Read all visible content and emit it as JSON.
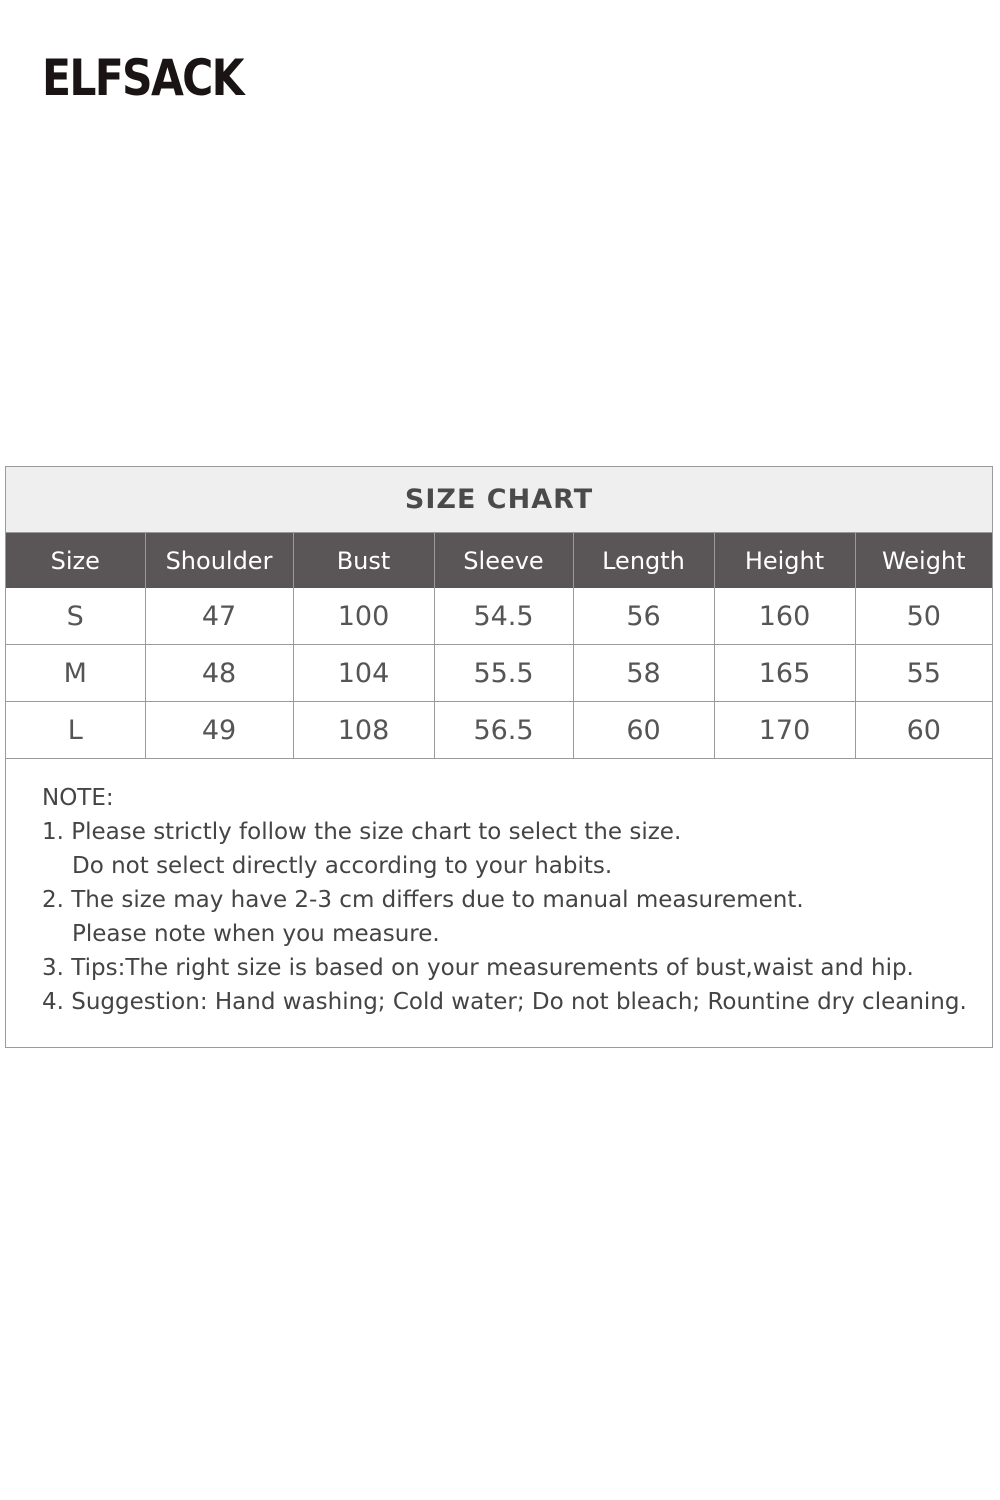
{
  "brand": {
    "logo_text": "ELFSACK"
  },
  "size_chart": {
    "title": "SIZE CHART",
    "headers": [
      "Size",
      "Shoulder",
      "Bust",
      "Sleeve",
      "Length",
      "Height",
      "Weight"
    ],
    "rows": [
      [
        "S",
        "47",
        "100",
        "54.5",
        "56",
        "160",
        "50"
      ],
      [
        "M",
        "48",
        "104",
        "55.5",
        "58",
        "165",
        "55"
      ],
      [
        "L",
        "49",
        "108",
        "56.5",
        "60",
        "170",
        "60"
      ]
    ]
  },
  "notes": {
    "heading": "NOTE:",
    "lines": [
      "1. Please strictly follow the size chart to select the size.",
      "Do not select directly according to your habits.",
      "2. The size may have 2-3 cm differs due to manual measurement.",
      "Please note when you measure.",
      "3. Tips:The right size is based on your measurements of bust,waist and hip.",
      "4. Suggestion: Hand washing; Cold water; Do not bleach; Rountine dry cleaning."
    ]
  }
}
